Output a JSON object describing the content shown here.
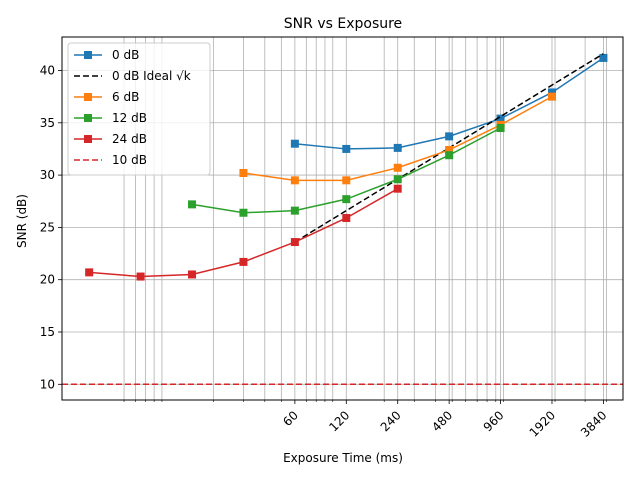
{
  "chart_data": {
    "type": "line",
    "title": "SNR vs Exposure",
    "xlabel": "Exposure Time (ms)",
    "ylabel": "SNR (dB)",
    "x_scale": "log2",
    "xlim": [
      2.6,
      5000
    ],
    "ylim": [
      8.5,
      43.2
    ],
    "xticks": [
      60,
      120,
      240,
      480,
      960,
      1920,
      3840
    ],
    "xtick_labels": [
      "60",
      "120",
      "240",
      "480",
      "960",
      "1920",
      "3840"
    ],
    "yticks": [
      10,
      15,
      20,
      25,
      30,
      35,
      40
    ],
    "ytick_labels": [
      "10",
      "15",
      "20",
      "25",
      "30",
      "35",
      "40"
    ],
    "x_minor_grid": [
      6,
      7,
      8,
      9,
      10,
      20,
      30,
      40,
      50,
      70,
      80,
      90,
      100,
      200,
      300,
      400,
      500,
      600,
      700,
      800,
      900,
      1000,
      2000,
      3000,
      4000
    ],
    "grid": true,
    "legend_position": "upper left",
    "series": [
      {
        "name": "0 dB",
        "color": "#1f77b4",
        "style": "solid",
        "marker": "square",
        "x": [
          60,
          120,
          240,
          480,
          960,
          1920,
          3840
        ],
        "y": [
          33.0,
          32.5,
          32.6,
          33.7,
          35.4,
          37.9,
          41.2
        ]
      },
      {
        "name": "0 dB Ideal √k",
        "color": "#000000",
        "style": "dashed",
        "marker": "none",
        "x": [
          60,
          120,
          240,
          480,
          960,
          1920,
          3840
        ],
        "y": [
          23.6,
          26.6,
          29.6,
          32.6,
          35.6,
          38.6,
          41.6
        ]
      },
      {
        "name": "6 dB",
        "color": "#ff7f0e",
        "style": "solid",
        "marker": "square",
        "x": [
          30,
          60,
          120,
          240,
          480,
          960,
          1920
        ],
        "y": [
          30.2,
          29.5,
          29.5,
          30.7,
          32.4,
          34.8,
          37.5
        ]
      },
      {
        "name": "12 dB",
        "color": "#2ca02c",
        "style": "solid",
        "marker": "square",
        "x": [
          15,
          30,
          60,
          120,
          240,
          480,
          960
        ],
        "y": [
          27.2,
          26.4,
          26.6,
          27.7,
          29.6,
          31.9,
          34.5
        ]
      },
      {
        "name": "24 dB",
        "color": "#d62728",
        "style": "solid",
        "marker": "square",
        "x": [
          3.75,
          7.5,
          15,
          30,
          60,
          120,
          240
        ],
        "y": [
          20.7,
          20.3,
          20.5,
          21.7,
          23.6,
          25.9,
          28.7
        ]
      },
      {
        "name": "10 dB",
        "color": "#d62728",
        "style": "dashed",
        "marker": "none",
        "hline": 10
      }
    ]
  }
}
